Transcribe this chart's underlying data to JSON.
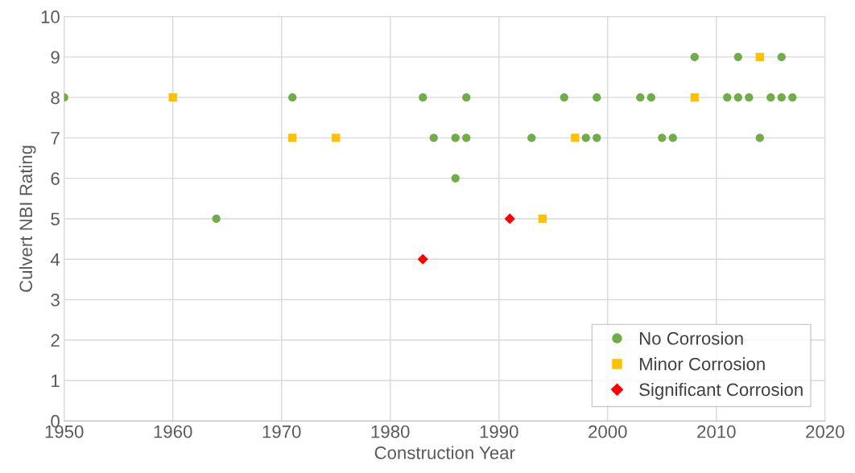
{
  "chart_data": {
    "type": "scatter",
    "xlabel": "Construction Year",
    "ylabel": "Culvert NBI Rating",
    "xlim": [
      1950,
      2020
    ],
    "xticks": [
      1950,
      1960,
      1970,
      1980,
      1990,
      2000,
      2010,
      2020
    ],
    "ylim": [
      0,
      10
    ],
    "yticks": [
      0,
      1,
      2,
      3,
      4,
      5,
      6,
      7,
      8,
      9,
      10
    ],
    "grid": true,
    "legend": "bottom right",
    "series": [
      {
        "name": "No Corrosion",
        "color": "#70ad47",
        "marker": "circle",
        "x": [
          1950,
          1964,
          1971,
          1983,
          1984,
          1986,
          1986,
          1987,
          1987,
          1993,
          1996,
          1998,
          1999,
          1999,
          2003,
          2004,
          2005,
          2006,
          2008,
          2011,
          2012,
          2012,
          2013,
          2014,
          2015,
          2016,
          2016,
          2017
        ],
        "values": [
          8,
          5,
          8,
          8,
          7,
          7,
          6,
          7,
          8,
          7,
          8,
          7,
          7,
          8,
          8,
          8,
          7,
          7,
          9,
          8,
          8,
          9,
          8,
          7,
          8,
          8,
          9,
          8
        ]
      },
      {
        "name": "Minor Corrosion",
        "color": "#ffc000",
        "marker": "square",
        "x": [
          1960,
          1971,
          1975,
          1994,
          1997,
          2008,
          2014
        ],
        "values": [
          8,
          7,
          7,
          5,
          7,
          8,
          9
        ]
      },
      {
        "name": "Significant Corrosion",
        "color": "#ff0000",
        "marker": "diamond",
        "x": [
          1983,
          1991
        ],
        "values": [
          4,
          5
        ]
      }
    ]
  }
}
